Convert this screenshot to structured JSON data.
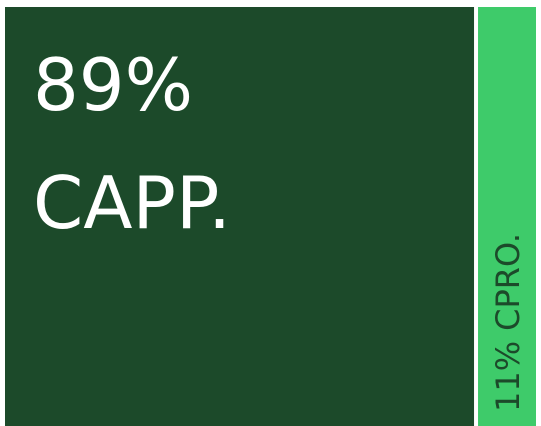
{
  "chart_data": {
    "type": "treemap",
    "categories": [
      "CAPP.",
      "CPRO."
    ],
    "values": [
      89,
      11
    ],
    "value_labels": [
      "89%",
      "11%"
    ],
    "colors": [
      "#1c4a2a",
      "#3ecb6a"
    ],
    "label_colors": [
      "#ffffff",
      "#1c4a2a"
    ]
  }
}
